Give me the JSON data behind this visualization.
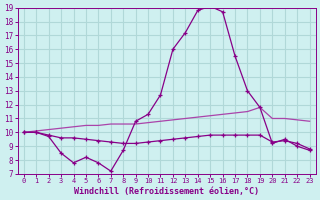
{
  "xlabel": "Windchill (Refroidissement éolien,°C)",
  "xlim": [
    -0.5,
    23.5
  ],
  "ylim": [
    7,
    19
  ],
  "yticks": [
    7,
    8,
    9,
    10,
    11,
    12,
    13,
    14,
    15,
    16,
    17,
    18,
    19
  ],
  "xticks": [
    0,
    1,
    2,
    3,
    4,
    5,
    6,
    7,
    8,
    9,
    10,
    11,
    12,
    13,
    14,
    15,
    16,
    17,
    18,
    19,
    20,
    21,
    22,
    23
  ],
  "bg_color": "#cff0f0",
  "grid_color": "#b0d8d8",
  "line_color": "#880088",
  "line_color2": "#aa44aa",
  "series1": [
    10.0,
    10.0,
    9.7,
    8.5,
    7.8,
    8.2,
    7.8,
    7.2,
    8.7,
    10.8,
    11.3,
    12.7,
    16.0,
    17.2,
    18.8,
    19.1,
    18.7,
    15.5,
    13.0,
    11.8,
    9.2,
    9.5,
    9.0,
    8.7
  ],
  "series2": [
    10.0,
    10.0,
    9.8,
    9.6,
    9.6,
    9.5,
    9.4,
    9.3,
    9.2,
    9.2,
    9.3,
    9.4,
    9.5,
    9.6,
    9.7,
    9.8,
    9.8,
    9.8,
    9.8,
    9.8,
    9.3,
    9.4,
    9.2,
    8.8
  ],
  "series3": [
    10.0,
    10.1,
    10.2,
    10.3,
    10.4,
    10.5,
    10.5,
    10.6,
    10.6,
    10.6,
    10.7,
    10.8,
    10.9,
    11.0,
    11.1,
    11.2,
    11.3,
    11.4,
    11.5,
    11.8,
    11.0,
    11.0,
    10.9,
    10.8
  ]
}
